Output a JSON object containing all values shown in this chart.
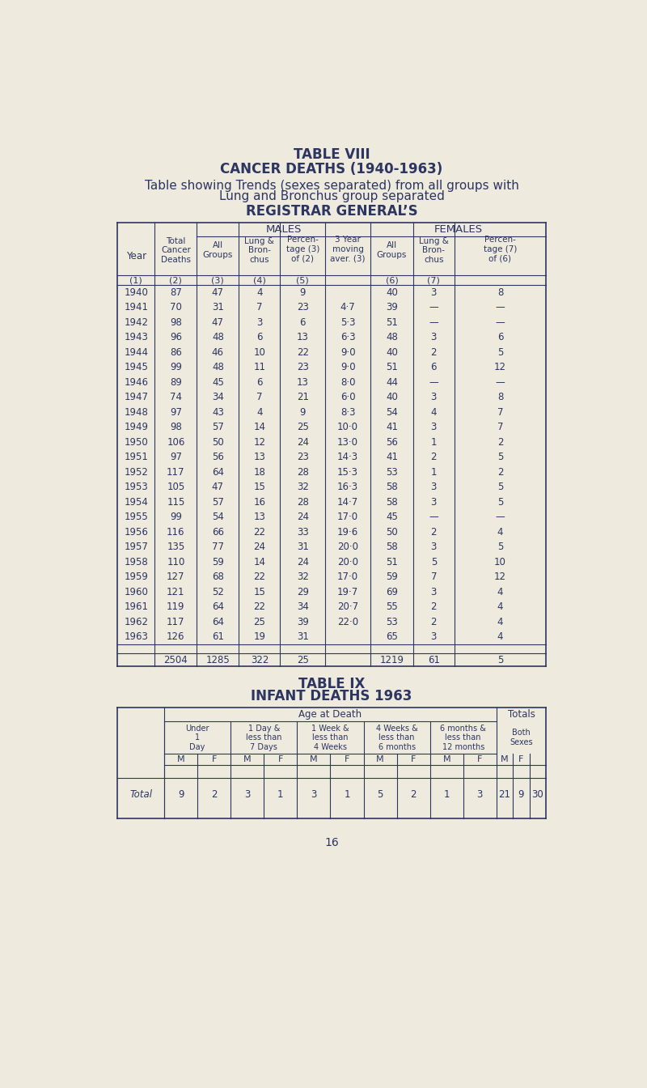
{
  "bg_color": "#eeeade",
  "text_color": "#2d3561",
  "title1": "TABLE VIII",
  "title2": "CANCER DEATHS (1940-1963)",
  "title3a": "Table showing Trends (sexes separated) from all groups with",
  "title3b": "Lung and Bronchus group separated",
  "title4": "REGISTRAR GENERAL’S",
  "table8_data": [
    [
      "1940",
      "87",
      "47",
      "4",
      "9",
      "",
      "40",
      "3",
      "8"
    ],
    [
      "1941",
      "70",
      "31",
      "7",
      "23",
      "4·7",
      "39",
      "—",
      "—"
    ],
    [
      "1942",
      "98",
      "47",
      "3",
      "6",
      "5·3",
      "51",
      "—",
      "—"
    ],
    [
      "1943",
      "96",
      "48",
      "6",
      "13",
      "6·3",
      "48",
      "3",
      "6"
    ],
    [
      "1944",
      "86",
      "46",
      "10",
      "22",
      "9·0",
      "40",
      "2",
      "5"
    ],
    [
      "1945",
      "99",
      "48",
      "11",
      "23",
      "9·0",
      "51",
      "6",
      "12"
    ],
    [
      "1946",
      "89",
      "45",
      "6",
      "13",
      "8·0",
      "44",
      "—",
      "—"
    ],
    [
      "1947",
      "74",
      "34",
      "7",
      "21",
      "6·0",
      "40",
      "3",
      "8"
    ],
    [
      "1948",
      "97",
      "43",
      "4",
      "9",
      "8·3",
      "54",
      "4",
      "7"
    ],
    [
      "1949",
      "98",
      "57",
      "14",
      "25",
      "10·0",
      "41",
      "3",
      "7"
    ],
    [
      "1950",
      "106",
      "50",
      "12",
      "24",
      "13·0",
      "56",
      "1",
      "2"
    ],
    [
      "1951",
      "97",
      "56",
      "13",
      "23",
      "14·3",
      "41",
      "2",
      "5"
    ],
    [
      "1952",
      "117",
      "64",
      "18",
      "28",
      "15·3",
      "53",
      "1",
      "2"
    ],
    [
      "1953",
      "105",
      "47",
      "15",
      "32",
      "16·3",
      "58",
      "3",
      "5"
    ],
    [
      "1954",
      "115",
      "57",
      "16",
      "28",
      "14·7",
      "58",
      "3",
      "5"
    ],
    [
      "1955",
      "99",
      "54",
      "13",
      "24",
      "17·0",
      "45",
      "—",
      "—"
    ],
    [
      "1956",
      "116",
      "66",
      "22",
      "33",
      "19·6",
      "50",
      "2",
      "4"
    ],
    [
      "1957",
      "135",
      "77",
      "24",
      "31",
      "20·0",
      "58",
      "3",
      "5"
    ],
    [
      "1958",
      "110",
      "59",
      "14",
      "24",
      "20·0",
      "51",
      "5",
      "10"
    ],
    [
      "1959",
      "127",
      "68",
      "22",
      "32",
      "17·0",
      "59",
      "7",
      "12"
    ],
    [
      "1960",
      "121",
      "52",
      "15",
      "29",
      "19·7",
      "69",
      "3",
      "4"
    ],
    [
      "1961",
      "119",
      "64",
      "22",
      "34",
      "20·7",
      "55",
      "2",
      "4"
    ],
    [
      "1962",
      "117",
      "64",
      "25",
      "39",
      "22·0",
      "53",
      "2",
      "4"
    ],
    [
      "1963",
      "126",
      "61",
      "19",
      "31",
      "",
      "65",
      "3",
      "4"
    ]
  ],
  "table8_totals": [
    "",
    "2504",
    "1285",
    "322",
    "25",
    "",
    "1219",
    "61",
    "5"
  ],
  "table9_title1": "TABLE IX",
  "table9_title2": "INFANT DEATHS 1963",
  "table9_data": [
    9,
    2,
    3,
    1,
    3,
    1,
    5,
    2,
    1,
    3,
    21,
    9,
    30
  ],
  "page_number": "16"
}
